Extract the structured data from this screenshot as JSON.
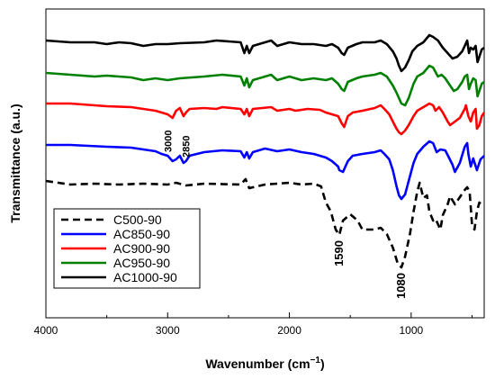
{
  "chart_data": {
    "type": "line",
    "title": "",
    "xlabel": "Wavenumber (cm",
    "xlabel_sup": "−1",
    "xlabel_close": ")",
    "ylabel": "Transmittance (a.u.)",
    "xlim": [
      4000,
      400
    ],
    "x_reversed": true,
    "x_ticks": [
      "4000",
      "3000",
      "2000",
      "1000"
    ],
    "x_tick_values": [
      4000,
      3000,
      2000,
      1000
    ],
    "y_ticks_shown": false,
    "grid": false,
    "legend_position": "lower-left",
    "series": [
      {
        "name": "C500-90",
        "color": "#000000",
        "dash": "dashed",
        "offset": 0,
        "points": [
          [
            4000,
            4
          ],
          [
            3800,
            0
          ],
          [
            3600,
            1
          ],
          [
            3400,
            0
          ],
          [
            3200,
            1
          ],
          [
            3000,
            0
          ],
          [
            2930,
            2
          ],
          [
            2850,
            -1
          ],
          [
            2700,
            1
          ],
          [
            2400,
            0
          ],
          [
            2360,
            6
          ],
          [
            2330,
            -4
          ],
          [
            2200,
            0
          ],
          [
            2000,
            2
          ],
          [
            1900,
            0
          ],
          [
            1800,
            1
          ],
          [
            1740,
            -2
          ],
          [
            1700,
            -20
          ],
          [
            1660,
            -30
          ],
          [
            1620,
            -50
          ],
          [
            1590,
            -56
          ],
          [
            1560,
            -40
          ],
          [
            1500,
            -33
          ],
          [
            1440,
            -40
          ],
          [
            1400,
            -50
          ],
          [
            1300,
            -50
          ],
          [
            1250,
            -48
          ],
          [
            1200,
            -55
          ],
          [
            1150,
            -70
          ],
          [
            1110,
            -88
          ],
          [
            1080,
            -92
          ],
          [
            1050,
            -80
          ],
          [
            1010,
            -55
          ],
          [
            980,
            -30
          ],
          [
            950,
            -8
          ],
          [
            930,
            2
          ],
          [
            900,
            -15
          ],
          [
            870,
            -12
          ],
          [
            850,
            -30
          ],
          [
            820,
            -40
          ],
          [
            800,
            -38
          ],
          [
            780,
            -44
          ],
          [
            760,
            -50
          ],
          [
            740,
            -34
          ],
          [
            700,
            -22
          ],
          [
            680,
            -13
          ],
          [
            640,
            -22
          ],
          [
            620,
            -18
          ],
          [
            590,
            -12
          ],
          [
            560,
            -6
          ],
          [
            540,
            -3
          ],
          [
            520,
            -8
          ],
          [
            500,
            -45
          ],
          [
            480,
            -50
          ],
          [
            460,
            -30
          ],
          [
            440,
            -20
          ],
          [
            420,
            -22
          ],
          [
            400,
            -24
          ]
        ]
      },
      {
        "name": "AC850-90",
        "color": "#0000ff",
        "dash": "solid",
        "offset": 44,
        "points": [
          [
            4000,
            0
          ],
          [
            3800,
            0
          ],
          [
            3500,
            -2
          ],
          [
            3300,
            -3
          ],
          [
            3200,
            -5
          ],
          [
            3100,
            -7
          ],
          [
            3050,
            -10
          ],
          [
            3000,
            -12
          ],
          [
            2960,
            -18
          ],
          [
            2930,
            -16
          ],
          [
            2900,
            -12
          ],
          [
            2870,
            -20
          ],
          [
            2850,
            -18
          ],
          [
            2820,
            -12
          ],
          [
            2700,
            -8
          ],
          [
            2550,
            -6
          ],
          [
            2400,
            -7
          ],
          [
            2370,
            -14
          ],
          [
            2350,
            -8
          ],
          [
            2330,
            -15
          ],
          [
            2300,
            -8
          ],
          [
            2200,
            -4
          ],
          [
            2100,
            -7
          ],
          [
            2000,
            -5
          ],
          [
            1900,
            -8
          ],
          [
            1800,
            -10
          ],
          [
            1700,
            -14
          ],
          [
            1650,
            -18
          ],
          [
            1600,
            -24
          ],
          [
            1590,
            -28
          ],
          [
            1560,
            -30
          ],
          [
            1520,
            -18
          ],
          [
            1480,
            -12
          ],
          [
            1400,
            -10
          ],
          [
            1300,
            -8
          ],
          [
            1250,
            -6
          ],
          [
            1220,
            -10
          ],
          [
            1180,
            -16
          ],
          [
            1150,
            -28
          ],
          [
            1120,
            -46
          ],
          [
            1100,
            -56
          ],
          [
            1080,
            -60
          ],
          [
            1050,
            -55
          ],
          [
            1020,
            -40
          ],
          [
            980,
            -20
          ],
          [
            950,
            -10
          ],
          [
            900,
            -2
          ],
          [
            850,
            4
          ],
          [
            820,
            2
          ],
          [
            790,
            -8
          ],
          [
            760,
            -5
          ],
          [
            720,
            -6
          ],
          [
            690,
            -14
          ],
          [
            660,
            -22
          ],
          [
            640,
            -30
          ],
          [
            600,
            -20
          ],
          [
            560,
            -2
          ],
          [
            540,
            2
          ],
          [
            530,
            -10
          ],
          [
            510,
            -24
          ],
          [
            490,
            -15
          ],
          [
            460,
            -28
          ],
          [
            430,
            -16
          ],
          [
            400,
            -12
          ]
        ]
      },
      {
        "name": "AC900-90",
        "color": "#ff0000",
        "dash": "solid",
        "offset": 90,
        "points": [
          [
            4000,
            0
          ],
          [
            3800,
            0
          ],
          [
            3500,
            -3
          ],
          [
            3300,
            -4
          ],
          [
            3200,
            -6
          ],
          [
            3100,
            -8
          ],
          [
            3000,
            -12
          ],
          [
            2960,
            -16
          ],
          [
            2930,
            -8
          ],
          [
            2900,
            -5
          ],
          [
            2870,
            -14
          ],
          [
            2850,
            -10
          ],
          [
            2820,
            -6
          ],
          [
            2700,
            -5
          ],
          [
            2600,
            -6
          ],
          [
            2550,
            -4
          ],
          [
            2400,
            -6
          ],
          [
            2370,
            -12
          ],
          [
            2350,
            -6
          ],
          [
            2330,
            -14
          ],
          [
            2300,
            -6
          ],
          [
            2150,
            -4
          ],
          [
            2100,
            -8
          ],
          [
            2000,
            -6
          ],
          [
            1950,
            -8
          ],
          [
            1850,
            -6
          ],
          [
            1750,
            -7
          ],
          [
            1700,
            -10
          ],
          [
            1650,
            -12
          ],
          [
            1600,
            -14
          ],
          [
            1570,
            -22
          ],
          [
            1550,
            -26
          ],
          [
            1520,
            -14
          ],
          [
            1480,
            -10
          ],
          [
            1400,
            -8
          ],
          [
            1300,
            -5
          ],
          [
            1250,
            -2
          ],
          [
            1220,
            -6
          ],
          [
            1180,
            -12
          ],
          [
            1150,
            -20
          ],
          [
            1120,
            -28
          ],
          [
            1100,
            -32
          ],
          [
            1080,
            -34
          ],
          [
            1050,
            -30
          ],
          [
            1020,
            -24
          ],
          [
            980,
            -14
          ],
          [
            950,
            -8
          ],
          [
            900,
            -4
          ],
          [
            850,
            0
          ],
          [
            820,
            -2
          ],
          [
            800,
            -8
          ],
          [
            770,
            -4
          ],
          [
            740,
            -10
          ],
          [
            700,
            -20
          ],
          [
            680,
            -24
          ],
          [
            640,
            -20
          ],
          [
            600,
            -16
          ],
          [
            560,
            -6
          ],
          [
            550,
            -2
          ],
          [
            530,
            -14
          ],
          [
            510,
            -20
          ],
          [
            490,
            -10
          ],
          [
            470,
            -6
          ],
          [
            460,
            -28
          ],
          [
            440,
            -24
          ],
          [
            420,
            -14
          ],
          [
            400,
            -10
          ]
        ]
      },
      {
        "name": "AC950-90",
        "color": "#008000",
        "dash": "solid",
        "offset": 124,
        "points": [
          [
            4000,
            0
          ],
          [
            3800,
            -2
          ],
          [
            3600,
            -4
          ],
          [
            3500,
            -3
          ],
          [
            3300,
            -5
          ],
          [
            3200,
            -8
          ],
          [
            3100,
            -6
          ],
          [
            3000,
            -8
          ],
          [
            2900,
            -6
          ],
          [
            2700,
            -4
          ],
          [
            2550,
            -2
          ],
          [
            2400,
            -4
          ],
          [
            2370,
            -14
          ],
          [
            2350,
            -6
          ],
          [
            2330,
            -16
          ],
          [
            2300,
            -8
          ],
          [
            2150,
            -2
          ],
          [
            2100,
            -8
          ],
          [
            2000,
            -4
          ],
          [
            1900,
            -8
          ],
          [
            1800,
            -6
          ],
          [
            1700,
            -8
          ],
          [
            1650,
            -6
          ],
          [
            1600,
            -12
          ],
          [
            1570,
            -18
          ],
          [
            1550,
            -20
          ],
          [
            1520,
            -10
          ],
          [
            1450,
            -6
          ],
          [
            1400,
            -4
          ],
          [
            1300,
            -2
          ],
          [
            1250,
            0
          ],
          [
            1200,
            -4
          ],
          [
            1150,
            -14
          ],
          [
            1120,
            -22
          ],
          [
            1100,
            -28
          ],
          [
            1080,
            -34
          ],
          [
            1050,
            -36
          ],
          [
            1020,
            -28
          ],
          [
            980,
            -12
          ],
          [
            950,
            -4
          ],
          [
            900,
            0
          ],
          [
            850,
            8
          ],
          [
            820,
            6
          ],
          [
            780,
            -4
          ],
          [
            750,
            -2
          ],
          [
            720,
            -6
          ],
          [
            680,
            -14
          ],
          [
            650,
            -20
          ],
          [
            620,
            -18
          ],
          [
            580,
            -10
          ],
          [
            560,
            -4
          ],
          [
            540,
            -2
          ],
          [
            525,
            -18
          ],
          [
            510,
            -12
          ],
          [
            490,
            -6
          ],
          [
            470,
            -8
          ],
          [
            455,
            -26
          ],
          [
            440,
            -20
          ],
          [
            420,
            -12
          ],
          [
            400,
            -10
          ]
        ]
      },
      {
        "name": "AC1000-90",
        "color": "#000000",
        "dash": "solid",
        "offset": 160,
        "points": [
          [
            4000,
            0
          ],
          [
            3800,
            -2
          ],
          [
            3600,
            -2
          ],
          [
            3500,
            -4
          ],
          [
            3400,
            -2
          ],
          [
            3300,
            -3
          ],
          [
            3200,
            -6
          ],
          [
            3100,
            -4
          ],
          [
            3000,
            -4
          ],
          [
            2900,
            -3
          ],
          [
            2700,
            -2
          ],
          [
            2600,
            0
          ],
          [
            2400,
            -2
          ],
          [
            2370,
            -14
          ],
          [
            2350,
            -6
          ],
          [
            2330,
            -14
          ],
          [
            2300,
            -6
          ],
          [
            2150,
            0
          ],
          [
            2100,
            -6
          ],
          [
            2000,
            -2
          ],
          [
            1900,
            -4
          ],
          [
            1800,
            -4
          ],
          [
            1700,
            -6
          ],
          [
            1650,
            -4
          ],
          [
            1600,
            -8
          ],
          [
            1570,
            -14
          ],
          [
            1550,
            -16
          ],
          [
            1520,
            -8
          ],
          [
            1450,
            -4
          ],
          [
            1400,
            -2
          ],
          [
            1300,
            -2
          ],
          [
            1250,
            0
          ],
          [
            1200,
            -4
          ],
          [
            1150,
            -12
          ],
          [
            1120,
            -20
          ],
          [
            1100,
            -28
          ],
          [
            1080,
            -34
          ],
          [
            1050,
            -30
          ],
          [
            1020,
            -22
          ],
          [
            990,
            -12
          ],
          [
            950,
            -6
          ],
          [
            900,
            -2
          ],
          [
            850,
            6
          ],
          [
            820,
            4
          ],
          [
            780,
            0
          ],
          [
            740,
            -8
          ],
          [
            700,
            -14
          ],
          [
            660,
            -20
          ],
          [
            620,
            -18
          ],
          [
            580,
            -12
          ],
          [
            560,
            -6
          ],
          [
            540,
            0
          ],
          [
            525,
            -14
          ],
          [
            510,
            -8
          ],
          [
            490,
            -10
          ],
          [
            470,
            -6
          ],
          [
            455,
            -24
          ],
          [
            440,
            -18
          ],
          [
            420,
            -10
          ],
          [
            400,
            -8
          ]
        ]
      }
    ],
    "annotations": [
      {
        "text": "3000",
        "x": 3000,
        "series": 1,
        "rotation": -90,
        "size": 11
      },
      {
        "text": "2850",
        "x": 2850,
        "series": 1,
        "rotation": -90,
        "size": 11
      },
      {
        "text": "1590",
        "x": 1590,
        "series": 0,
        "rotation": -90,
        "size": 13
      },
      {
        "text": "1080",
        "x": 1080,
        "series": 0,
        "rotation": -90,
        "size": 13
      }
    ]
  }
}
